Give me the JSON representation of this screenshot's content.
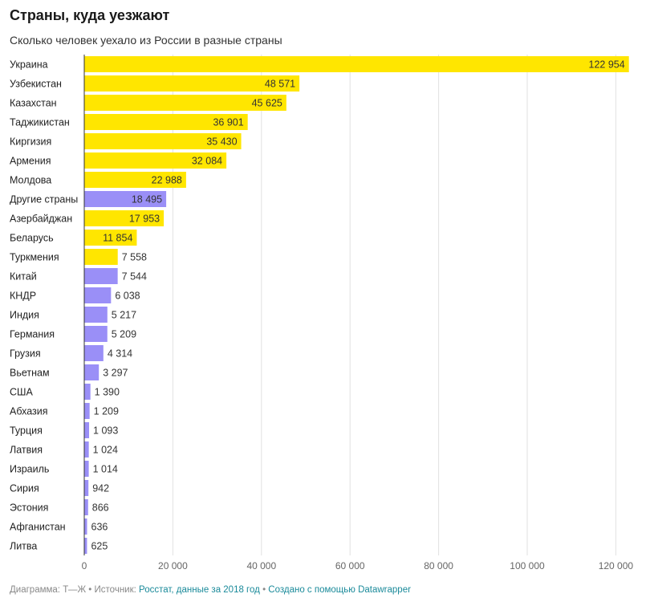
{
  "title": "Страны, куда уезжают",
  "subtitle": "Сколько человек уехало из России в разные страны",
  "colors": {
    "primary": "#ffe600",
    "secondary": "#9a8ff7",
    "grid": "#e2e2e2",
    "axis": "#333333"
  },
  "footer": {
    "prefix": "Диаграмма: Т—Ж",
    "sep1": "•",
    "source_label": "Источник:",
    "source_link": "Росстат, данные за 2018 год",
    "sep2": "•",
    "made_with": "Создано с помощью Datawrapper"
  },
  "chart_data": {
    "type": "bar",
    "orientation": "horizontal",
    "title": "Страны, куда уезжают",
    "subtitle": "Сколько человек уехало из России в разные страны",
    "xlim": [
      0,
      125000
    ],
    "xticks": [
      0,
      20000,
      40000,
      60000,
      80000,
      100000,
      120000
    ],
    "xtick_labels": [
      "0",
      "20 000",
      "40 000",
      "60 000",
      "80 000",
      "100 000",
      "120 000"
    ],
    "grid": true,
    "categories": [
      "Украина",
      "Узбекистан",
      "Казахстан",
      "Таджикистан",
      "Киргизия",
      "Армения",
      "Молдова",
      "Другие страны",
      "Азербайджан",
      "Беларусь",
      "Туркмения",
      "Китай",
      "КНДР",
      "Индия",
      "Германия",
      "Грузия",
      "Вьетнам",
      "США",
      "Абхазия",
      "Турция",
      "Латвия",
      "Израиль",
      "Сирия",
      "Эстония",
      "Афганистан",
      "Литва"
    ],
    "values": [
      122954,
      48571,
      45625,
      36901,
      35430,
      32084,
      22988,
      18495,
      17953,
      11854,
      7558,
      7544,
      6038,
      5217,
      5209,
      4314,
      3297,
      1390,
      1209,
      1093,
      1024,
      1014,
      942,
      866,
      636,
      625
    ],
    "value_labels": [
      "122 954",
      "48 571",
      "45 625",
      "36 901",
      "35 430",
      "32 084",
      "22 988",
      "18 495",
      "17 953",
      "11 854",
      "7 558",
      "7 544",
      "6 038",
      "5 217",
      "5 209",
      "4 314",
      "3 297",
      "1 390",
      "1 209",
      "1 093",
      "1 024",
      "1 014",
      "942",
      "866",
      "636",
      "625"
    ],
    "bar_colors": [
      "#ffe600",
      "#ffe600",
      "#ffe600",
      "#ffe600",
      "#ffe600",
      "#ffe600",
      "#ffe600",
      "#9a8ff7",
      "#ffe600",
      "#ffe600",
      "#ffe600",
      "#9a8ff7",
      "#9a8ff7",
      "#9a8ff7",
      "#9a8ff7",
      "#9a8ff7",
      "#9a8ff7",
      "#9a8ff7",
      "#9a8ff7",
      "#9a8ff7",
      "#9a8ff7",
      "#9a8ff7",
      "#9a8ff7",
      "#9a8ff7",
      "#9a8ff7",
      "#9a8ff7"
    ]
  }
}
